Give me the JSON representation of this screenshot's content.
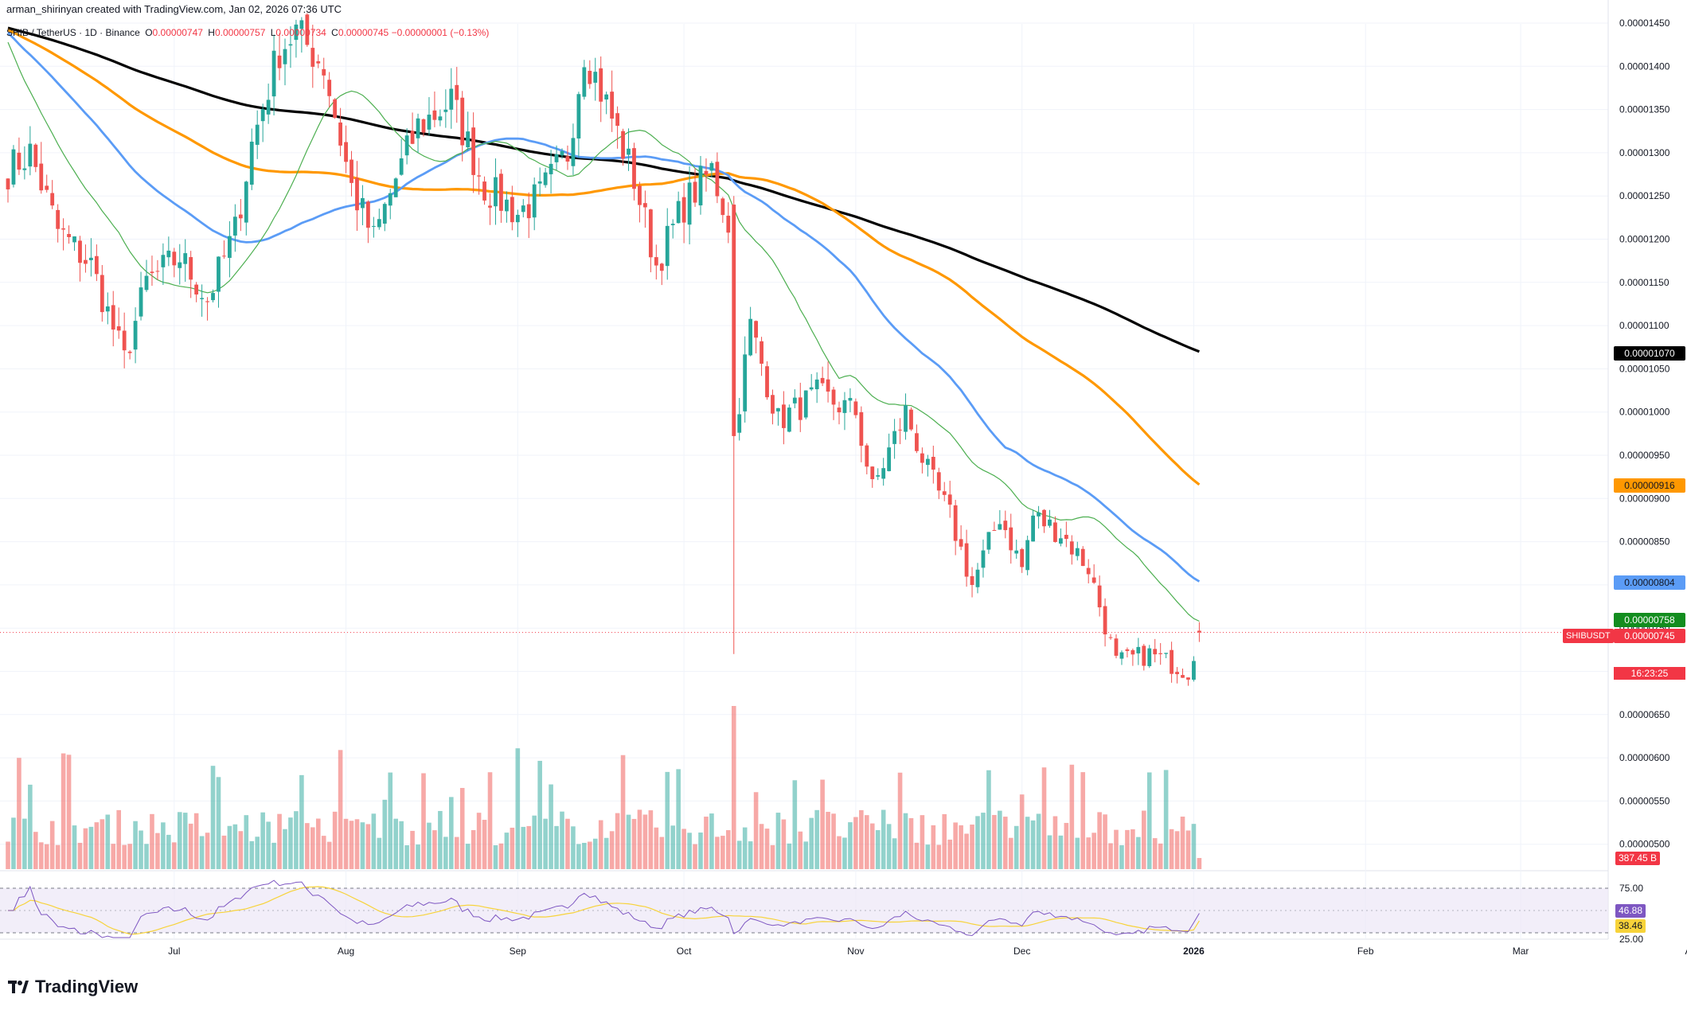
{
  "header": {
    "created_text": "arman_shirinyan created with TradingView.com, Jan 02, 2026 07:36 UTC",
    "symbol_line": "SHIB / TetherUS · 1D · Binance",
    "open_label": "O",
    "open": "0.00000747",
    "high_label": "H",
    "high": "0.00000757",
    "low_label": "L",
    "low": "0.00000734",
    "close_label": "C",
    "close": "0.00000745",
    "change": "−0.00000001 (−0.13%)"
  },
  "price_axis": {
    "ticks": [
      "0.00001450",
      "0.00001400",
      "0.00001350",
      "0.00001300",
      "0.00001250",
      "0.00001200",
      "0.00001150",
      "0.00001100",
      "0.00001050",
      "0.00001000",
      "0.00000950",
      "0.00000900",
      "0.00000850",
      "0.00000800",
      "0.00000750",
      "0.00000700",
      "0.00000650",
      "0.00000600",
      "0.00000550",
      "0.00000500"
    ]
  },
  "price_tags": {
    "ma200": "0.00001070",
    "ma100": "0.00000916",
    "ma50": "0.00000804",
    "ma20": "0.00000758",
    "last": "0.00000745",
    "symbol": "SHIBUSDT",
    "countdown": "16:23:25",
    "volume": "387.45 B"
  },
  "rsi_axis": {
    "upper": "75.00",
    "lower": "25.00",
    "rsi_value": "46.88",
    "rsi_ma_value": "38.46"
  },
  "time_axis": {
    "labels": [
      "Jul",
      "Aug",
      "Sep",
      "Oct",
      "Nov",
      "Dec",
      "2026",
      "Feb",
      "Mar",
      "Apr"
    ]
  },
  "brand": {
    "name": "TradingView"
  },
  "colors": {
    "up": "#26a69a",
    "down": "#ef5350",
    "ma20": "#4caf50",
    "ma50": "#5b9cf6",
    "ma100": "#ff9800",
    "ma200": "#000000",
    "rsi": "#7e57c2",
    "rsi_ma": "#f7d33a",
    "rsi_band": "#ede7f6"
  },
  "chart_data": [
    {
      "type": "candlestick",
      "title": "SHIB / TetherUS · 1D · Binance",
      "ylim": [
        4.8e-06,
        1.46e-05
      ],
      "x_start": "2025-06-01",
      "x_end": "2026-01-02",
      "axis_end": "2026-04-01",
      "waypoints": [
        {
          "date": "2025-06-01",
          "close": 1.28e-05
        },
        {
          "date": "2025-06-05",
          "close": 1.3e-05
        },
        {
          "date": "2025-06-10",
          "close": 1.21e-05
        },
        {
          "date": "2025-06-16",
          "close": 1.17e-05
        },
        {
          "date": "2025-06-22",
          "close": 1.06e-05
        },
        {
          "date": "2025-06-26",
          "close": 1.15e-05
        },
        {
          "date": "2025-07-02",
          "close": 1.18e-05
        },
        {
          "date": "2025-07-07",
          "close": 1.13e-05
        },
        {
          "date": "2025-07-12",
          "close": 1.21e-05
        },
        {
          "date": "2025-07-15",
          "close": 1.31e-05
        },
        {
          "date": "2025-07-20",
          "close": 1.42e-05
        },
        {
          "date": "2025-07-23",
          "close": 1.44e-05
        },
        {
          "date": "2025-07-28",
          "close": 1.4e-05
        },
        {
          "date": "2025-08-02",
          "close": 1.26e-05
        },
        {
          "date": "2025-08-06",
          "close": 1.2e-05
        },
        {
          "date": "2025-08-10",
          "close": 1.27e-05
        },
        {
          "date": "2025-08-14",
          "close": 1.33e-05
        },
        {
          "date": "2025-08-20",
          "close": 1.36e-05
        },
        {
          "date": "2025-08-26",
          "close": 1.26e-05
        },
        {
          "date": "2025-09-01",
          "close": 1.23e-05
        },
        {
          "date": "2025-09-05",
          "close": 1.25e-05
        },
        {
          "date": "2025-09-10",
          "close": 1.3e-05
        },
        {
          "date": "2025-09-13",
          "close": 1.42e-05
        },
        {
          "date": "2025-09-18",
          "close": 1.34e-05
        },
        {
          "date": "2025-09-22",
          "close": 1.27e-05
        },
        {
          "date": "2025-09-26",
          "close": 1.17e-05
        },
        {
          "date": "2025-10-01",
          "close": 1.24e-05
        },
        {
          "date": "2025-10-06",
          "close": 1.28e-05
        },
        {
          "date": "2025-10-09",
          "close": 1.22e-05
        },
        {
          "date": "2025-10-10",
          "close": 9.7e-06
        },
        {
          "date": "2025-10-13",
          "close": 1.1e-05
        },
        {
          "date": "2025-10-18",
          "close": 9.9e-06
        },
        {
          "date": "2025-10-25",
          "close": 1.02e-05
        },
        {
          "date": "2025-11-01",
          "close": 1e-05
        },
        {
          "date": "2025-11-04",
          "close": 9.1e-06
        },
        {
          "date": "2025-11-10",
          "close": 1e-05
        },
        {
          "date": "2025-11-14",
          "close": 9.3e-06
        },
        {
          "date": "2025-11-18",
          "close": 8.8e-06
        },
        {
          "date": "2025-11-22",
          "close": 8e-06
        },
        {
          "date": "2025-11-27",
          "close": 8.8e-06
        },
        {
          "date": "2025-12-01",
          "close": 8.2e-06
        },
        {
          "date": "2025-12-03",
          "close": 8.8e-06
        },
        {
          "date": "2025-12-08",
          "close": 8.6e-06
        },
        {
          "date": "2025-12-13",
          "close": 8.2e-06
        },
        {
          "date": "2025-12-18",
          "close": 7.1e-06
        },
        {
          "date": "2025-12-24",
          "close": 7.2e-06
        },
        {
          "date": "2025-12-31",
          "close": 7e-06
        },
        {
          "date": "2026-01-02",
          "close": 7.45e-06
        }
      ],
      "moving_averages": [
        {
          "name": "MA20",
          "end_value": 7.58e-06
        },
        {
          "name": "MA50",
          "end_value": 8.04e-06
        },
        {
          "name": "MA100",
          "end_value": 9.16e-06
        },
        {
          "name": "MA200",
          "end_value": 1.07e-05
        }
      ],
      "last_bar": {
        "date": "2026-01-02",
        "open": 7.47e-06,
        "high": 7.57e-06,
        "low": 7.34e-06,
        "close": 7.45e-06
      }
    },
    {
      "type": "bar",
      "title": "Volume",
      "last_value": "387.45 B",
      "spike_date": "2025-10-10"
    },
    {
      "type": "line",
      "title": "RSI",
      "ylim": [
        0,
        100
      ],
      "bands": [
        25,
        75
      ],
      "last_rsi": 46.88,
      "last_rsi_ma": 38.46
    }
  ]
}
